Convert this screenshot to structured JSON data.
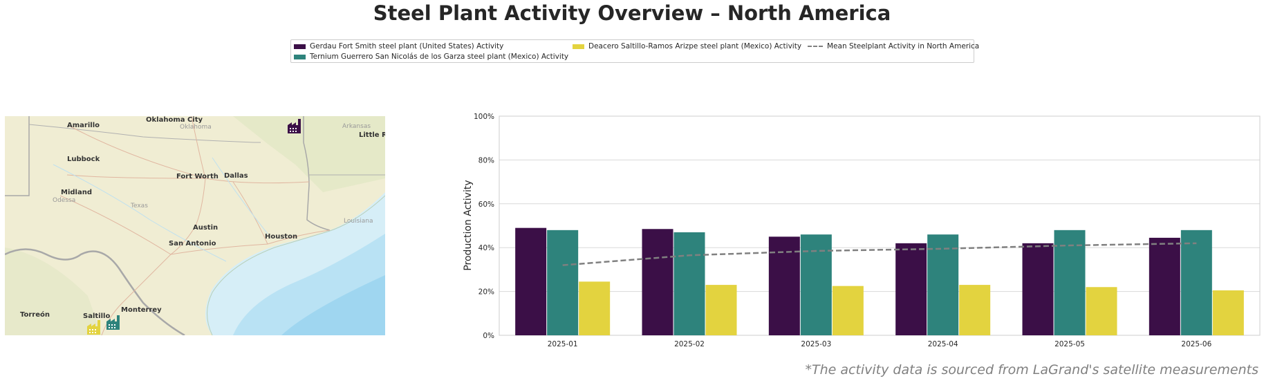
{
  "title": "Steel Plant Activity Overview – North America",
  "footnote": "*The activity data is sourced from LaGrand's satellite measurements",
  "legend": [
    {
      "label": "Gerdau Fort Smith steel plant (United States) Activity",
      "color": "#3b0f47"
    },
    {
      "label": "Ternium Guerrero San Nicolás de los Garza steel plant (Mexico) Activity",
      "color": "#2e837c"
    },
    {
      "label": "Deacero Saltillo-Ramos Arizpe steel plant (Mexico) Activity",
      "color": "#e3d33f"
    },
    {
      "label": "Mean Steelplant Activity in North America",
      "color": "#808080"
    }
  ],
  "map": {
    "labels": {
      "oklahoma_city": "Oklahoma City",
      "oklahoma": "Oklahoma",
      "amarillo": "Amarillo",
      "arkansas": "Arkansas",
      "little_rock": "Little R",
      "lubbock": "Lubbock",
      "fort_worth": "Fort Worth",
      "dallas": "Dallas",
      "midland": "Midland",
      "odessa": "Odessa",
      "texas": "Texas",
      "austin": "Austin",
      "louisiana": "Louisiana",
      "san_antonio": "San Antonio",
      "houston": "Houston",
      "torreon": "Torreón",
      "monterrey": "Monterrey",
      "saltillo": "Saltillo"
    },
    "markers": [
      {
        "plant": "Gerdau Fort Smith",
        "color": "#3b0f47",
        "icon": "factory-icon"
      },
      {
        "plant": "Ternium Guerrero",
        "color": "#2e837c",
        "icon": "factory-icon"
      },
      {
        "plant": "Deacero Saltillo",
        "color": "#e3d33f",
        "icon": "factory-icon"
      }
    ]
  },
  "chart_data": {
    "type": "bar",
    "categories": [
      "2025-01",
      "2025-02",
      "2025-03",
      "2025-04",
      "2025-05",
      "2025-06"
    ],
    "series": [
      {
        "name": "Gerdau Fort Smith steel plant (United States) Activity",
        "color": "#3b0f47",
        "values": [
          49,
          48.5,
          45,
          42,
          42,
          44.5
        ]
      },
      {
        "name": "Ternium Guerrero San Nicolás de los Garza steel plant (Mexico) Activity",
        "color": "#2e837c",
        "values": [
          48,
          47,
          46,
          46,
          48,
          48
        ]
      },
      {
        "name": "Deacero Saltillo-Ramos Arizpe steel plant (Mexico) Activity",
        "color": "#e3d33f",
        "values": [
          24.5,
          23,
          22.5,
          23,
          22,
          20.5
        ]
      }
    ],
    "line": {
      "name": "Mean Steelplant Activity in North America",
      "color": "#808080",
      "values": [
        32,
        36.5,
        38.5,
        39.5,
        41,
        42
      ]
    },
    "ylabel": "Production Activity",
    "ylim": [
      0,
      100
    ],
    "yticks": [
      "0%",
      "20%",
      "40%",
      "60%",
      "80%",
      "100%"
    ],
    "ytick_values": [
      0,
      20,
      40,
      60,
      80,
      100
    ],
    "grid": true
  }
}
